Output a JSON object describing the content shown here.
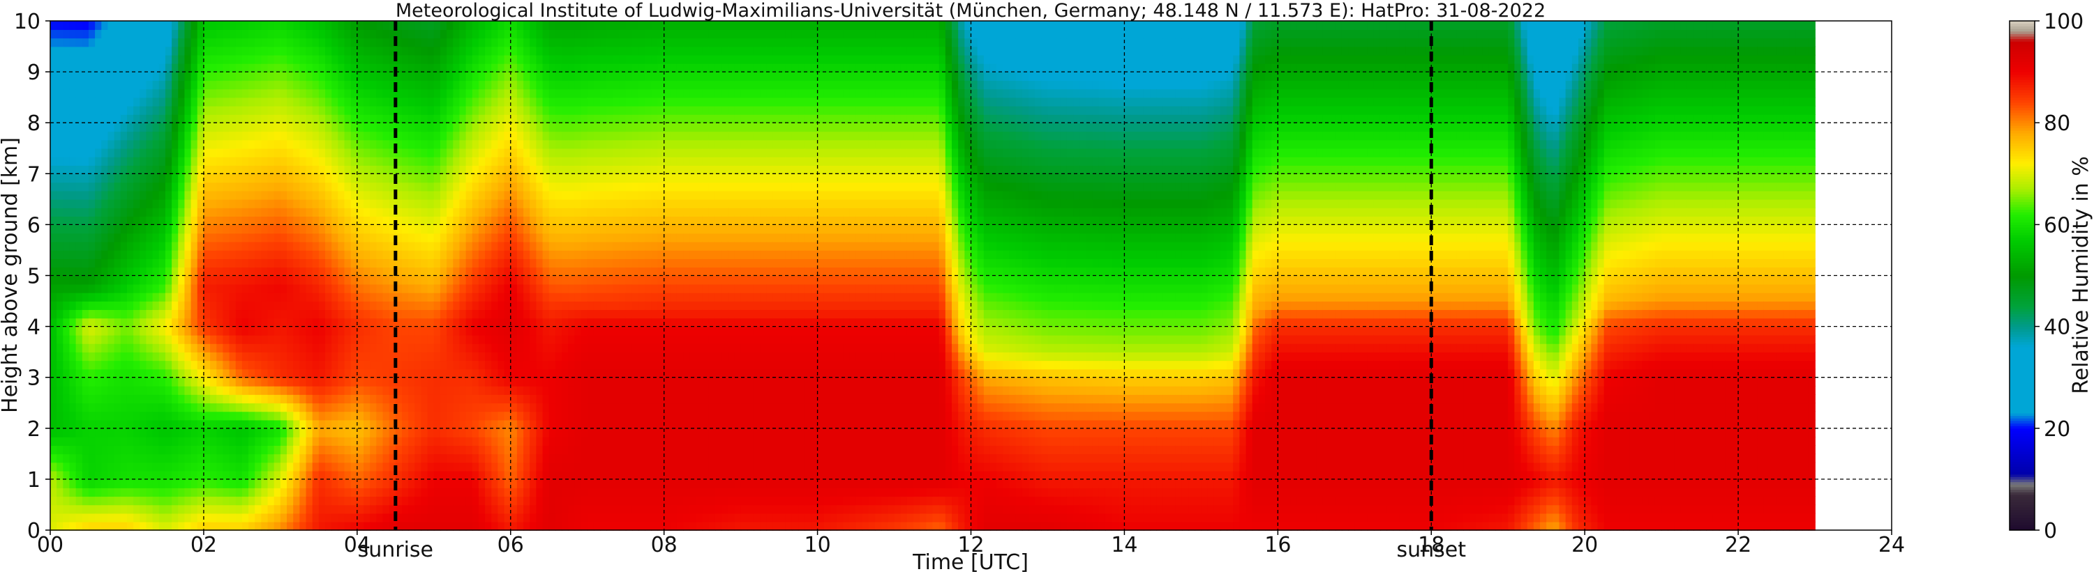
{
  "chart_data": {
    "type": "heatmap",
    "title": "Meteorological Institute of Ludwig-Maximilians-Universität (München, Germany; 48.148 N / 11.573 E):    HatPro: 31-08-2022",
    "xlabel": "Time [UTC]",
    "ylabel": "Height above ground [km]",
    "xlim": [
      0,
      24
    ],
    "ylim": [
      0,
      10
    ],
    "x_ticks": [
      "00",
      "02",
      "04",
      "06",
      "08",
      "10",
      "12",
      "14",
      "16",
      "18",
      "20",
      "22",
      "24"
    ],
    "y_ticks": [
      "0",
      "1",
      "2",
      "3",
      "4",
      "5",
      "6",
      "7",
      "8",
      "9",
      "10"
    ],
    "grid": true,
    "data_end_hour": 23,
    "colorbar": {
      "label": "Relative Humidity in %",
      "range": [
        0,
        100
      ],
      "ticks": [
        "0",
        "20",
        "40",
        "60",
        "80",
        "100"
      ]
    },
    "annotations": [
      {
        "label": "sunrise",
        "x_hour": 4.5
      },
      {
        "label": "sunset",
        "x_hour": 18.0
      }
    ],
    "profiles": [
      {
        "t": 0.0,
        "top": 48,
        "rh": [
          70,
          68,
          55,
          55,
          55,
          50,
          45,
          42,
          42,
          40,
          40
        ]
      },
      {
        "t": 0.5,
        "top": 48,
        "rh": [
          75,
          58,
          58,
          62,
          70,
          46,
          40,
          42,
          45,
          48,
          45
        ]
      },
      {
        "t": 1.0,
        "top": 48,
        "rh": [
          75,
          60,
          58,
          60,
          65,
          55,
          50,
          45,
          45,
          48,
          45
        ]
      },
      {
        "t": 1.5,
        "top": 48,
        "rh": [
          70,
          60,
          56,
          62,
          72,
          60,
          52,
          48,
          48,
          46,
          45
        ]
      },
      {
        "t": 2.0,
        "top": 48,
        "rh": [
          75,
          62,
          58,
          72,
          85,
          88,
          75,
          62,
          52,
          48,
          46
        ]
      },
      {
        "t": 2.5,
        "top": 48,
        "rh": [
          75,
          60,
          56,
          82,
          90,
          88,
          80,
          68,
          55,
          50,
          46
        ]
      },
      {
        "t": 3.0,
        "top": 48,
        "rh": [
          80,
          70,
          60,
          86,
          88,
          90,
          82,
          70,
          56,
          50,
          46
        ]
      },
      {
        "t": 3.5,
        "top": 48,
        "rh": [
          88,
          86,
          78,
          88,
          90,
          86,
          76,
          62,
          52,
          48,
          46
        ]
      },
      {
        "t": 4.0,
        "top": 48,
        "rh": [
          90,
          82,
          76,
          84,
          86,
          80,
          70,
          60,
          52,
          48,
          45
        ]
      },
      {
        "t": 4.5,
        "top": 48,
        "rh": [
          92,
          86,
          82,
          85,
          84,
          78,
          68,
          58,
          50,
          46,
          44
        ]
      },
      {
        "t": 5.0,
        "top": 48,
        "rh": [
          92,
          90,
          86,
          86,
          84,
          76,
          66,
          56,
          50,
          46,
          44
        ]
      },
      {
        "t": 5.5,
        "top": 48,
        "rh": [
          92,
          90,
          84,
          86,
          90,
          84,
          74,
          60,
          52,
          48,
          45
        ]
      },
      {
        "t": 6.0,
        "top": 48,
        "rh": [
          88,
          82,
          80,
          90,
          92,
          90,
          84,
          72,
          58,
          50,
          46
        ]
      },
      {
        "t": 6.5,
        "top": 48,
        "rh": [
          92,
          92,
          90,
          90,
          88,
          82,
          72,
          62,
          54,
          48,
          44
        ]
      },
      {
        "t": 7.0,
        "top": 45,
        "rh": [
          90,
          92,
          92,
          92,
          90,
          80,
          70,
          60,
          52,
          46,
          43
        ]
      },
      {
        "t": 8.0,
        "top": 43,
        "rh": [
          90,
          92,
          92,
          92,
          90,
          80,
          70,
          60,
          52,
          46,
          42
        ]
      },
      {
        "t": 9.0,
        "top": 43,
        "rh": [
          88,
          92,
          92,
          92,
          90,
          80,
          70,
          60,
          52,
          46,
          42
        ]
      },
      {
        "t": 10.0,
        "top": 43,
        "rh": [
          88,
          92,
          92,
          92,
          90,
          80,
          70,
          60,
          52,
          46,
          42
        ]
      },
      {
        "t": 11.0,
        "top": 43,
        "rh": [
          85,
          92,
          92,
          92,
          90,
          80,
          70,
          60,
          52,
          45,
          42
        ]
      },
      {
        "t": 11.6,
        "top": 43,
        "rh": [
          82,
          92,
          92,
          92,
          90,
          80,
          70,
          60,
          52,
          45,
          42
        ]
      },
      {
        "t": 11.9,
        "top": 38,
        "rh": [
          88,
          90,
          88,
          84,
          72,
          55,
          46,
          40,
          38,
          37,
          36
        ]
      },
      {
        "t": 12.2,
        "top": 35,
        "rh": [
          92,
          90,
          86,
          78,
          62,
          48,
          42,
          38,
          37,
          36,
          35
        ]
      },
      {
        "t": 13.0,
        "top": 35,
        "rh": [
          92,
          88,
          84,
          76,
          60,
          48,
          40,
          37,
          36,
          36,
          35
        ]
      },
      {
        "t": 14.0,
        "top": 35,
        "rh": [
          90,
          88,
          84,
          75,
          60,
          47,
          40,
          37,
          36,
          35,
          35
        ]
      },
      {
        "t": 15.0,
        "top": 35,
        "rh": [
          90,
          88,
          84,
          75,
          60,
          47,
          40,
          37,
          36,
          35,
          35
        ]
      },
      {
        "t": 15.4,
        "top": 35,
        "rh": [
          90,
          88,
          84,
          76,
          62,
          50,
          42,
          38,
          36,
          35,
          35
        ]
      },
      {
        "t": 15.7,
        "top": 42,
        "rh": [
          90,
          92,
          92,
          88,
          82,
          68,
          58,
          48,
          44,
          42,
          40
        ]
      },
      {
        "t": 16.0,
        "top": 45,
        "rh": [
          90,
          92,
          92,
          92,
          86,
          72,
          62,
          52,
          46,
          44,
          42
        ]
      },
      {
        "t": 17.0,
        "top": 45,
        "rh": [
          90,
          92,
          92,
          92,
          86,
          72,
          62,
          52,
          46,
          44,
          42
        ]
      },
      {
        "t": 18.0,
        "top": 45,
        "rh": [
          90,
          92,
          92,
          92,
          86,
          72,
          62,
          52,
          46,
          44,
          42
        ]
      },
      {
        "t": 19.0,
        "top": 45,
        "rh": [
          88,
          92,
          92,
          92,
          86,
          72,
          62,
          52,
          46,
          44,
          42
        ]
      },
      {
        "t": 19.35,
        "top": 40,
        "rh": [
          82,
          90,
          84,
          75,
          65,
          52,
          44,
          40,
          38,
          38,
          37
        ]
      },
      {
        "t": 19.6,
        "top": 38,
        "rh": [
          78,
          88,
          80,
          70,
          60,
          50,
          40,
          38,
          36,
          35,
          35
        ]
      },
      {
        "t": 19.9,
        "top": 42,
        "rh": [
          86,
          90,
          88,
          80,
          70,
          58,
          48,
          45,
          42,
          40,
          40
        ]
      },
      {
        "t": 20.3,
        "top": 45,
        "rh": [
          90,
          92,
          92,
          90,
          84,
          70,
          60,
          50,
          46,
          44,
          42
        ]
      },
      {
        "t": 21.0,
        "top": 45,
        "rh": [
          90,
          92,
          92,
          92,
          86,
          72,
          62,
          52,
          46,
          44,
          42
        ]
      },
      {
        "t": 22.0,
        "top": 45,
        "rh": [
          90,
          92,
          92,
          92,
          86,
          72,
          62,
          52,
          46,
          44,
          42
        ]
      },
      {
        "t": 23.0,
        "top": 45,
        "rh": [
          90,
          92,
          92,
          92,
          86,
          72,
          62,
          52,
          46,
          44,
          42
        ]
      }
    ]
  },
  "colors": {
    "colorscale": [
      [
        0,
        "#1e0a2e"
      ],
      [
        7,
        "#3a2a3a"
      ],
      [
        9,
        "#7a7a7a"
      ],
      [
        11,
        "#0000aa"
      ],
      [
        20,
        "#0000ff"
      ],
      [
        23,
        "#00a6d6"
      ],
      [
        36,
        "#00a6d6"
      ],
      [
        40,
        "#009a8a"
      ],
      [
        44,
        "#00a23a"
      ],
      [
        50,
        "#009a00"
      ],
      [
        57,
        "#00cc00"
      ],
      [
        62,
        "#22ee00"
      ],
      [
        67,
        "#aaee00"
      ],
      [
        72,
        "#ffee00"
      ],
      [
        78,
        "#ffaa00"
      ],
      [
        84,
        "#ff4400"
      ],
      [
        90,
        "#ee0000"
      ],
      [
        96,
        "#cc0000"
      ],
      [
        98,
        "#aaa090"
      ],
      [
        100,
        "#d8d0c0"
      ]
    ],
    "grid": "#000000",
    "sun_line": "#000000"
  }
}
